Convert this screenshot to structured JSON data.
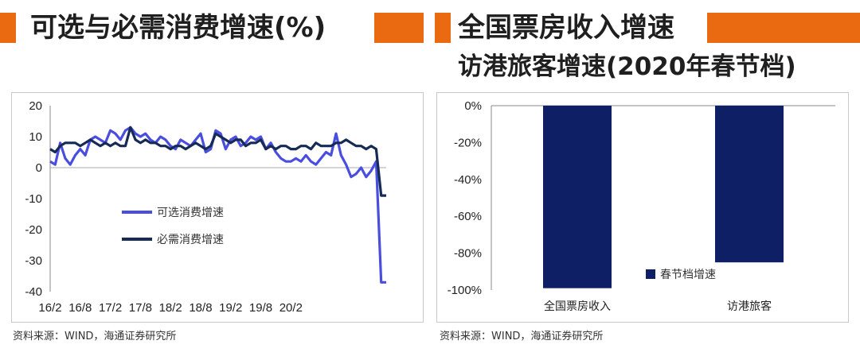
{
  "left": {
    "title": "可选与必需消费增速(%)",
    "source": "资料来源：WIND，海通证券研究所"
  },
  "right": {
    "title_line1": "全国票房收入增速",
    "title_line2": "访港旅客增速(2020年春节档)",
    "source": "资料来源：WIND，海通证券研究所"
  },
  "colors": {
    "accent": "#ea6a12",
    "discretionary": "#4a4ee0",
    "necessity": "#152a55",
    "bar": "#0f1f66"
  },
  "chart_data": [
    {
      "type": "line",
      "title": "可选与必需消费增速(%)",
      "ylim": [
        -40,
        20
      ],
      "yticks": [
        20,
        10,
        0,
        -10,
        -20,
        -30,
        -40
      ],
      "xticks": [
        "16/2",
        "16/8",
        "17/2",
        "17/8",
        "18/2",
        "18/8",
        "19/2",
        "19/8",
        "20/2"
      ],
      "series": [
        {
          "name": "可选消费增速",
          "values": [
            2,
            1,
            8,
            3,
            1,
            4,
            6,
            4,
            9,
            10,
            9,
            8,
            12,
            11,
            9,
            12,
            13,
            11,
            10,
            11,
            9,
            8,
            10,
            9,
            7,
            6,
            9,
            8,
            7,
            9,
            11,
            5,
            6,
            12,
            11,
            6,
            9,
            10,
            7,
            8,
            10,
            9,
            10,
            6,
            8,
            5,
            3,
            2,
            2,
            3,
            2,
            4,
            2,
            1,
            3,
            5,
            4,
            11,
            4,
            1,
            -3,
            -2,
            0,
            -3,
            -1,
            2,
            -37,
            -37
          ]
        },
        {
          "name": "必需消费增速",
          "values": [
            6,
            5,
            7,
            8,
            8,
            8,
            7,
            8,
            9,
            8,
            7,
            8,
            7,
            8,
            7,
            7,
            13,
            9,
            8,
            9,
            8,
            8,
            7,
            7,
            6,
            7,
            7,
            6,
            7,
            8,
            7,
            6,
            7,
            11,
            10,
            9,
            8,
            9,
            9,
            7,
            8,
            8,
            9,
            6,
            7,
            6,
            7,
            7,
            6,
            6,
            7,
            7,
            6,
            8,
            7,
            7,
            7,
            8,
            8,
            9,
            8,
            7,
            7,
            6,
            7,
            6,
            -9,
            -9
          ]
        }
      ]
    },
    {
      "type": "bar",
      "title": "全国票房收入增速 访港旅客增速(2020年春节档)",
      "categories": [
        "全国票房收入",
        "访港旅客"
      ],
      "series": [
        {
          "name": "春节档增速",
          "values": [
            -99,
            -85
          ]
        }
      ],
      "ylim": [
        -100,
        0
      ],
      "yticks": [
        "0%",
        "-20%",
        "-40%",
        "-60%",
        "-80%",
        "-100%"
      ]
    }
  ]
}
